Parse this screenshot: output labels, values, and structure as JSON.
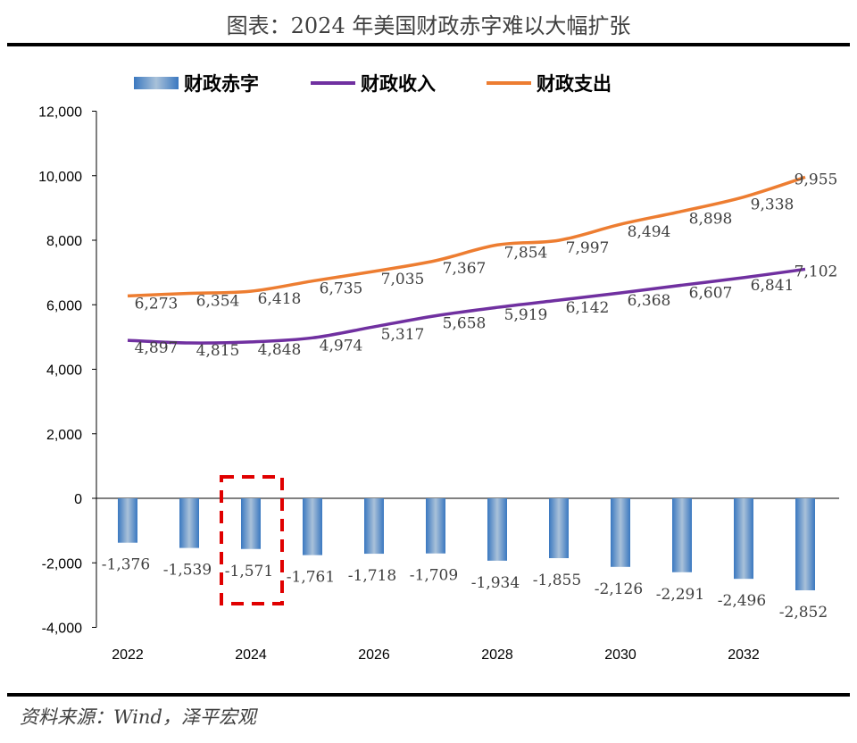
{
  "title": "图表：2024 年美国财政赤字难以大幅扩张",
  "source": "资料来源：Wind，泽平宏观",
  "colors": {
    "deficit": "#3a78c0",
    "revenue": "#7030a0",
    "spending": "#ed7d31",
    "highlight": "#e00000"
  },
  "chart_data": {
    "type": "bar+line",
    "categories": [
      "2022",
      "2023",
      "2024",
      "2025",
      "2026",
      "2027",
      "2028",
      "2029",
      "2030",
      "2031",
      "2032",
      "2033"
    ],
    "x_tick_labels": [
      "2022",
      "2024",
      "2026",
      "2028",
      "2030",
      "2032"
    ],
    "y_ticks": [
      "12,000",
      "10,000",
      "8,000",
      "6,000",
      "4,000",
      "2,000",
      "0",
      "-2,000",
      "-4,000"
    ],
    "ylim": [
      -4000,
      12000
    ],
    "grid": false,
    "legend_position": "top",
    "series": [
      {
        "name": "财政赤字",
        "type": "bar",
        "values": [
          -1376,
          -1539,
          -1571,
          -1761,
          -1718,
          -1709,
          -1934,
          -1855,
          -2126,
          -2291,
          -2496,
          -2852
        ],
        "labels": [
          "-1,376",
          "-1,539",
          "-1,571",
          "-1,761",
          "-1,718",
          "-1,709",
          "-1,934",
          "-1,855",
          "-2,126",
          "-2,291",
          "-2,496",
          "-2,852"
        ]
      },
      {
        "name": "财政收入",
        "type": "line",
        "values": [
          4897,
          4815,
          4848,
          4974,
          5317,
          5658,
          5919,
          6142,
          6368,
          6607,
          6841,
          7102
        ],
        "labels": [
          "4,897",
          "4,815",
          "4,848",
          "4,974",
          "5,317",
          "5,658",
          "5,919",
          "6,142",
          "6,368",
          "6,607",
          "6,841",
          "7,102"
        ]
      },
      {
        "name": "财政支出",
        "type": "line",
        "values": [
          6273,
          6354,
          6418,
          6735,
          7035,
          7367,
          7854,
          7997,
          8494,
          8898,
          9338,
          9955
        ],
        "labels": [
          "6,273",
          "6,354",
          "6,418",
          "6,735",
          "7,035",
          "7,367",
          "7,854",
          "7,997",
          "8,494",
          "8,898",
          "9,338",
          "9,955"
        ]
      }
    ],
    "highlight_category": "2024"
  }
}
